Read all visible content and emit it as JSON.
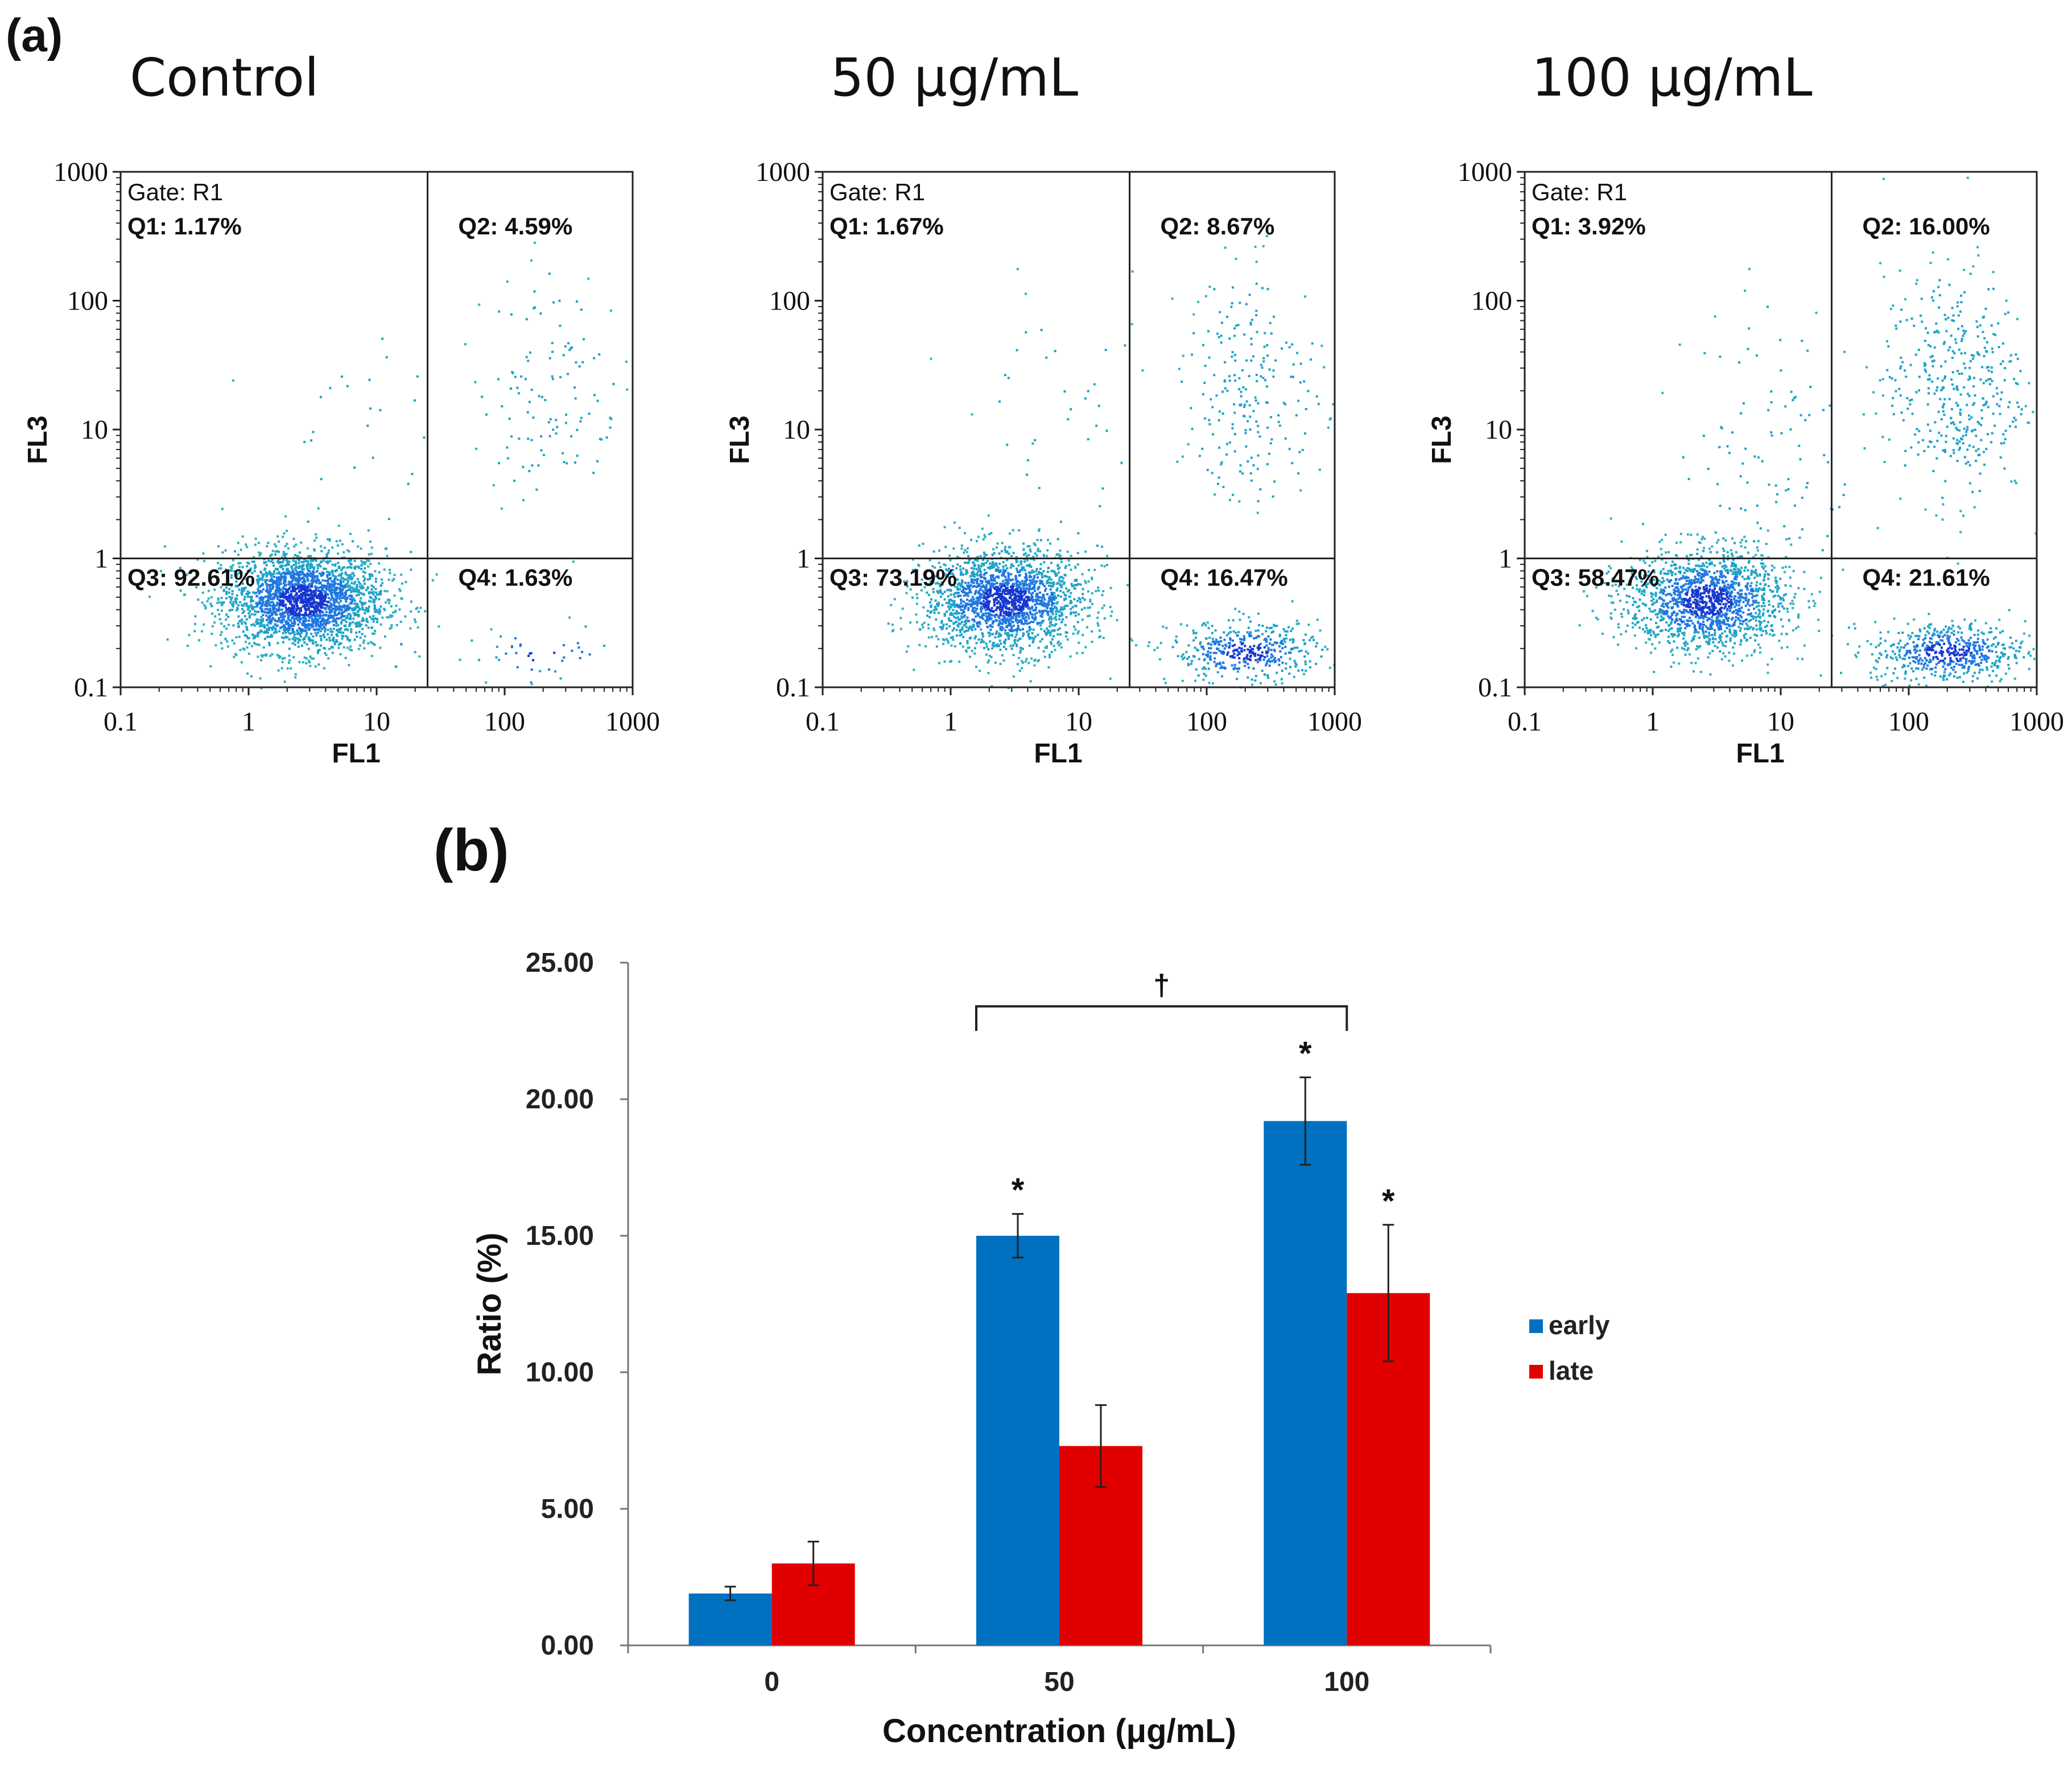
{
  "panel_a": {
    "label": "(a)",
    "plots": [
      {
        "title": "Control",
        "gate": "Gate: R1",
        "quadrants": {
          "q1": "Q1: 1.17%",
          "q2": "Q2: 4.59%",
          "q3": "Q3: 92.61%",
          "q4": "Q4: 1.63%"
        },
        "x_label": "FL1",
        "y_label": "FL3",
        "x_ticks": [
          "0.1",
          "1",
          "10",
          "100",
          "1000"
        ],
        "y_ticks": [
          "0.1",
          "1",
          "10",
          "100",
          "1000"
        ]
      },
      {
        "title": "50 μg/mL",
        "gate": "Gate: R1",
        "quadrants": {
          "q1": "Q1: 1.67%",
          "q2": "Q2: 8.67%",
          "q3": "Q3: 73.19%",
          "q4": "Q4: 16.47%"
        },
        "x_label": "FL1",
        "y_label": "FL3",
        "x_ticks": [
          "0.1",
          "1",
          "10",
          "100",
          "1000"
        ],
        "y_ticks": [
          "0.1",
          "1",
          "10",
          "100",
          "1000"
        ]
      },
      {
        "title": "100 μg/mL",
        "gate": "Gate: R1",
        "quadrants": {
          "q1": "Q1: 3.92%",
          "q2": "Q2: 16.00%",
          "q3": "Q3: 58.47%",
          "q4": "Q4: 21.61%"
        },
        "x_label": "FL1",
        "y_label": "FL3",
        "x_ticks": [
          "0.1",
          "1",
          "10",
          "100",
          "1000"
        ],
        "y_ticks": [
          "0.1",
          "1",
          "10",
          "100",
          "1000"
        ]
      }
    ]
  },
  "panel_b": {
    "label": "(b)",
    "significance_dagger": "†",
    "significance_star": "*"
  },
  "chart_data": [
    {
      "type": "scatter",
      "title": "Control",
      "xlabel": "FL1",
      "ylabel": "FL3",
      "x_scale": "log",
      "y_scale": "log",
      "xlim": [
        0.1,
        1000
      ],
      "ylim": [
        0.1,
        1000
      ],
      "gate_x": 25,
      "gate_y": 1,
      "quadrant_percent": {
        "Q1": 1.17,
        "Q2": 4.59,
        "Q3": 92.61,
        "Q4": 1.63
      },
      "point_color": "#1fa3c8"
    },
    {
      "type": "scatter",
      "title": "50 μg/mL",
      "xlabel": "FL1",
      "ylabel": "FL3",
      "x_scale": "log",
      "y_scale": "log",
      "xlim": [
        0.1,
        1000
      ],
      "ylim": [
        0.1,
        1000
      ],
      "gate_x": 25,
      "gate_y": 1,
      "quadrant_percent": {
        "Q1": 1.67,
        "Q2": 8.67,
        "Q3": 73.19,
        "Q4": 16.47
      },
      "point_color": "#1fa3c8"
    },
    {
      "type": "scatter",
      "title": "100 μg/mL",
      "xlabel": "FL1",
      "ylabel": "FL3",
      "x_scale": "log",
      "y_scale": "log",
      "xlim": [
        0.1,
        1000
      ],
      "ylim": [
        0.1,
        1000
      ],
      "gate_x": 25,
      "gate_y": 1,
      "quadrant_percent": {
        "Q1": 3.92,
        "Q2": 16.0,
        "Q3": 58.47,
        "Q4": 21.61
      },
      "point_color": "#1fa3c8"
    },
    {
      "type": "bar",
      "title": "",
      "xlabel": "Concentration (μg/mL)",
      "ylabel": "Ratio (%)",
      "categories": [
        "0",
        "50",
        "100"
      ],
      "ylim": [
        0,
        25
      ],
      "y_ticks": [
        "0.00",
        "5.00",
        "10.00",
        "15.00",
        "20.00",
        "25.00"
      ],
      "series": [
        {
          "name": "early",
          "color": "#0070c0",
          "values": [
            1.9,
            15.0,
            19.2
          ],
          "errors": [
            0.25,
            0.8,
            1.6
          ],
          "significant": [
            false,
            true,
            true
          ]
        },
        {
          "name": "late",
          "color": "#e00000",
          "values": [
            3.0,
            7.3,
            12.9
          ],
          "errors": [
            0.8,
            1.5,
            2.5
          ],
          "significant": [
            false,
            false,
            true
          ]
        }
      ],
      "legend_position": "right",
      "comparison_bracket": {
        "from_category": "50",
        "to_category": "100",
        "series": "early",
        "label": "†"
      }
    }
  ]
}
